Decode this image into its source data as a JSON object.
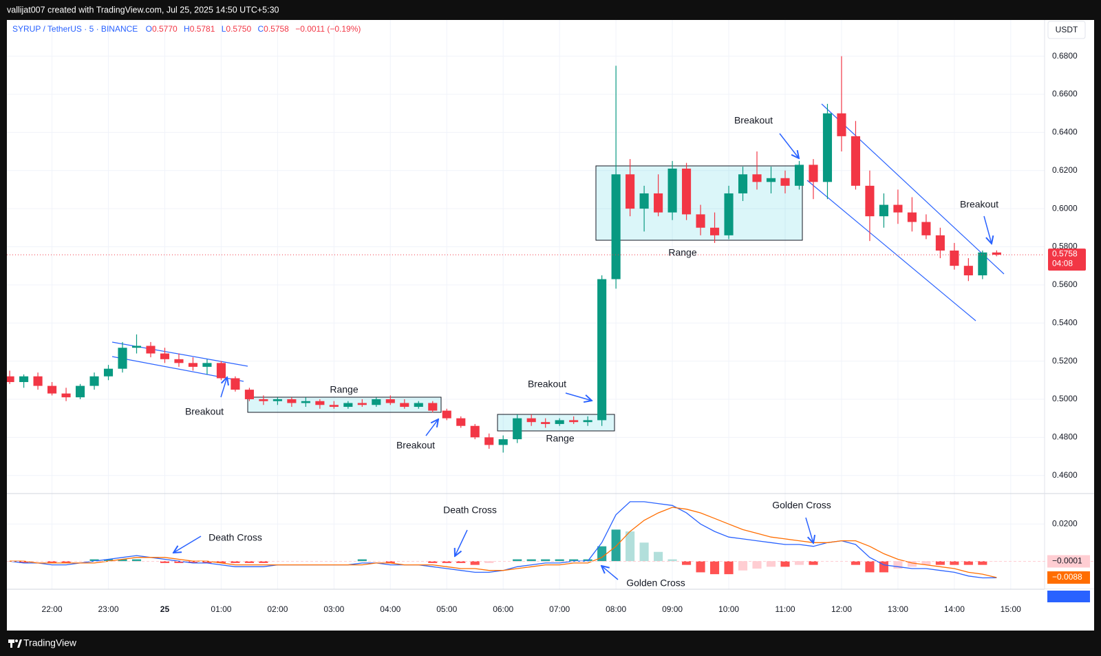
{
  "header": {
    "credit": "vallijat007 created with TradingView.com, Jul 25, 2025 14:50 UTC+5:30"
  },
  "footer": {
    "brand": "TradingView"
  },
  "chart_data": [
    {
      "type": "candlestick",
      "symbol": "SYRUP / TetherUS · 5 · BINANCE",
      "legend": [
        {
          "key": "O",
          "value": "0.5770"
        },
        {
          "key": "H",
          "value": "0.5781"
        },
        {
          "key": "L",
          "value": "0.5750"
        },
        {
          "key": "C",
          "value": "0.5758"
        }
      ],
      "change": "−0.0011 (−0.19%)",
      "currency": "USDT",
      "x": [
        -2.75,
        -2.5,
        -2.25,
        -2,
        -1.75,
        -1.5,
        -1.25,
        -1,
        -0.75,
        -0.5,
        -0.25,
        0,
        0.25,
        0.5,
        0.75,
        1,
        1.25,
        1.5,
        1.75,
        2,
        2.25,
        2.5,
        2.75,
        3,
        3.25,
        3.5,
        3.75,
        4,
        4.25,
        4.5,
        4.75,
        5,
        5.25,
        5.5,
        5.75,
        6,
        6.25,
        6.5,
        6.75,
        7,
        7.25,
        7.5,
        7.75,
        8,
        8.25,
        8.5,
        8.75,
        9,
        9.25,
        9.5,
        9.75,
        10,
        10.25,
        10.5,
        10.75,
        11,
        11.25,
        11.5,
        11.75,
        12,
        12.25,
        12.5,
        12.75,
        13,
        13.25,
        13.5,
        13.75,
        14,
        14.25,
        14.5,
        14.75
      ],
      "open": [
        0.512,
        0.509,
        0.512,
        0.507,
        0.503,
        0.501,
        0.507,
        0.512,
        0.516,
        0.527,
        0.528,
        0.524,
        0.521,
        0.519,
        0.517,
        0.519,
        0.511,
        0.505,
        0.5,
        0.499,
        0.5,
        0.498,
        0.499,
        0.497,
        0.496,
        0.498,
        0.497,
        0.5,
        0.498,
        0.496,
        0.498,
        0.494,
        0.49,
        0.486,
        0.48,
        0.476,
        0.479,
        0.49,
        0.488,
        0.487,
        0.489,
        0.488,
        0.489,
        0.563,
        0.618,
        0.6,
        0.608,
        0.598,
        0.621,
        0.597,
        0.59,
        0.586,
        0.608,
        0.618,
        0.614,
        0.616,
        0.612,
        0.623,
        0.614,
        0.65,
        0.638,
        0.612,
        0.596,
        0.602,
        0.598,
        0.593,
        0.586,
        0.578,
        0.57,
        0.565,
        0.577
      ],
      "high": [
        0.515,
        0.513,
        0.514,
        0.509,
        0.506,
        0.508,
        0.514,
        0.518,
        0.53,
        0.534,
        0.53,
        0.527,
        0.524,
        0.522,
        0.521,
        0.52,
        0.512,
        0.506,
        0.502,
        0.501,
        0.501,
        0.501,
        0.5,
        0.499,
        0.499,
        0.5,
        0.501,
        0.502,
        0.5,
        0.499,
        0.499,
        0.495,
        0.491,
        0.487,
        0.482,
        0.481,
        0.492,
        0.492,
        0.49,
        0.49,
        0.491,
        0.491,
        0.565,
        0.675,
        0.626,
        0.612,
        0.618,
        0.625,
        0.624,
        0.602,
        0.598,
        0.612,
        0.622,
        0.63,
        0.622,
        0.62,
        0.625,
        0.626,
        0.655,
        0.68,
        0.646,
        0.62,
        0.608,
        0.61,
        0.606,
        0.597,
        0.59,
        0.582,
        0.574,
        0.578,
        0.5781
      ],
      "low": [
        0.508,
        0.506,
        0.505,
        0.502,
        0.499,
        0.5,
        0.505,
        0.51,
        0.514,
        0.524,
        0.522,
        0.519,
        0.517,
        0.515,
        0.513,
        0.51,
        0.504,
        0.499,
        0.497,
        0.497,
        0.496,
        0.496,
        0.495,
        0.495,
        0.495,
        0.496,
        0.496,
        0.497,
        0.495,
        0.495,
        0.493,
        0.489,
        0.485,
        0.479,
        0.474,
        0.472,
        0.477,
        0.486,
        0.485,
        0.486,
        0.487,
        0.486,
        0.486,
        0.558,
        0.596,
        0.588,
        0.596,
        0.594,
        0.594,
        0.586,
        0.582,
        0.584,
        0.604,
        0.61,
        0.608,
        0.608,
        0.61,
        0.605,
        0.605,
        0.63,
        0.61,
        0.583,
        0.59,
        0.592,
        0.588,
        0.584,
        0.574,
        0.568,
        0.562,
        0.563,
        0.575
      ],
      "close": [
        0.509,
        0.512,
        0.507,
        0.503,
        0.501,
        0.507,
        0.512,
        0.516,
        0.527,
        0.528,
        0.524,
        0.521,
        0.519,
        0.517,
        0.519,
        0.511,
        0.505,
        0.5,
        0.499,
        0.5,
        0.498,
        0.499,
        0.497,
        0.496,
        0.498,
        0.497,
        0.5,
        0.498,
        0.496,
        0.498,
        0.494,
        0.49,
        0.486,
        0.48,
        0.476,
        0.479,
        0.49,
        0.488,
        0.487,
        0.489,
        0.488,
        0.489,
        0.563,
        0.618,
        0.6,
        0.608,
        0.598,
        0.621,
        0.597,
        0.59,
        0.586,
        0.608,
        0.618,
        0.614,
        0.616,
        0.612,
        0.623,
        0.614,
        0.65,
        0.638,
        0.612,
        0.596,
        0.602,
        0.598,
        0.593,
        0.586,
        0.578,
        0.57,
        0.565,
        0.577,
        0.5758
      ],
      "up_color": "#089981",
      "down_color": "#f23645",
      "xlim": [
        -2.8,
        15.6
      ],
      "xticks": [
        {
          "value": -2,
          "label": "22:00"
        },
        {
          "value": -1,
          "label": "23:00"
        },
        {
          "value": 0,
          "label": "25"
        },
        {
          "value": 1,
          "label": "01:00"
        },
        {
          "value": 2,
          "label": "02:00"
        },
        {
          "value": 3,
          "label": "03:00"
        },
        {
          "value": 4,
          "label": "04:00"
        },
        {
          "value": 5,
          "label": "05:00"
        },
        {
          "value": 6,
          "label": "06:00"
        },
        {
          "value": 7,
          "label": "07:00"
        },
        {
          "value": 8,
          "label": "08:00"
        },
        {
          "value": 9,
          "label": "09:00"
        },
        {
          "value": 10,
          "label": "10:00"
        },
        {
          "value": 11,
          "label": "11:00"
        },
        {
          "value": 12,
          "label": "12:00"
        },
        {
          "value": 13,
          "label": "13:00"
        },
        {
          "value": 14,
          "label": "14:00"
        },
        {
          "value": 15,
          "label": "15:00"
        }
      ],
      "ylim": [
        0.4505,
        0.699
      ],
      "yticks": [
        {
          "value": 0.46,
          "label": "0.4600"
        },
        {
          "value": 0.48,
          "label": "0.4800"
        },
        {
          "value": 0.5,
          "label": "0.5000"
        },
        {
          "value": 0.52,
          "label": "0.5200"
        },
        {
          "value": 0.54,
          "label": "0.5400"
        },
        {
          "value": 0.56,
          "label": "0.5600"
        },
        {
          "value": 0.58,
          "label": "0.5800"
        },
        {
          "value": 0.6,
          "label": "0.6000"
        },
        {
          "value": 0.62,
          "label": "0.6200"
        },
        {
          "value": 0.64,
          "label": "0.6400"
        },
        {
          "value": 0.66,
          "label": "0.6600"
        },
        {
          "value": 0.68,
          "label": "0.6800"
        }
      ],
      "grid": true,
      "last_price_label": "0.5758",
      "countdown": "04:08",
      "annotations": [
        "Range",
        "Range",
        "Range",
        "Breakout",
        "Breakout",
        "Breakout",
        "Breakout",
        "Breakout"
      ]
    },
    {
      "type": "macd",
      "macd": {
        "color": "#2962ff",
        "values": [
          0,
          -0.001,
          -0.001,
          -0.002,
          -0.002,
          -0.001,
          0,
          0.001,
          0.002,
          0.003,
          0.002,
          0.001,
          0,
          -0.001,
          -0.001,
          -0.002,
          -0.003,
          -0.003,
          -0.003,
          -0.002,
          -0.002,
          -0.002,
          -0.002,
          -0.002,
          -0.002,
          -0.001,
          -0.001,
          -0.002,
          -0.002,
          -0.002,
          -0.003,
          -0.004,
          -0.005,
          -0.006,
          -0.006,
          -0.005,
          -0.003,
          -0.002,
          -0.001,
          -0.001,
          0,
          0,
          0.01,
          0.025,
          0.032,
          0.032,
          0.031,
          0.03,
          0.026,
          0.02,
          0.016,
          0.013,
          0.012,
          0.011,
          0.01,
          0.009,
          0.009,
          0.008,
          0.01,
          0.011,
          0.009,
          0.002,
          -0.002,
          -0.003,
          -0.004,
          -0.004,
          -0.005,
          -0.006,
          -0.008,
          -0.009,
          -0.0089
        ]
      },
      "signal": {
        "color": "#ff6d00",
        "values": [
          0,
          0,
          -0.001,
          -0.001,
          -0.001,
          -0.001,
          -0.001,
          0,
          0.001,
          0.002,
          0.002,
          0.002,
          0.001,
          0,
          0,
          -0.001,
          -0.002,
          -0.002,
          -0.002,
          -0.002,
          -0.002,
          -0.002,
          -0.002,
          -0.002,
          -0.002,
          -0.002,
          -0.001,
          -0.001,
          -0.002,
          -0.002,
          -0.002,
          -0.003,
          -0.004,
          -0.004,
          -0.005,
          -0.005,
          -0.004,
          -0.003,
          -0.002,
          -0.002,
          -0.001,
          -0.001,
          0.002,
          0.008,
          0.016,
          0.022,
          0.026,
          0.029,
          0.028,
          0.026,
          0.023,
          0.02,
          0.017,
          0.015,
          0.013,
          0.012,
          0.011,
          0.01,
          0.01,
          0.011,
          0.011,
          0.008,
          0.004,
          0.001,
          -0.001,
          -0.002,
          -0.003,
          -0.004,
          -0.006,
          -0.007,
          -0.0088
        ]
      },
      "histogram": {
        "colors": [
          "#26a69a",
          "#b2dfdb",
          "#ff5252",
          "#ffcdd2"
        ],
        "values": [
          0,
          -0.001,
          0,
          -0.001,
          -0.001,
          0,
          0.001,
          0.001,
          0.001,
          0.001,
          0,
          -0.001,
          -0.001,
          -0.001,
          -0.001,
          -0.001,
          -0.001,
          -0.001,
          -0.001,
          0,
          0,
          0,
          0,
          0,
          0,
          0.001,
          0,
          -0.001,
          0,
          0,
          -0.001,
          -0.001,
          -0.001,
          -0.002,
          -0.001,
          0,
          0.001,
          0.001,
          0.001,
          0.001,
          0.001,
          0.001,
          0.008,
          0.017,
          0.016,
          0.01,
          0.005,
          0.001,
          -0.002,
          -0.006,
          -0.007,
          -0.007,
          -0.005,
          -0.004,
          -0.003,
          -0.003,
          -0.002,
          -0.002,
          0,
          0,
          -0.002,
          -0.006,
          -0.006,
          -0.004,
          -0.003,
          -0.002,
          -0.002,
          -0.002,
          -0.002,
          -0.002,
          -0.0001
        ]
      },
      "ylim": [
        -0.0151,
        0.0364
      ],
      "yticks": [
        {
          "value": 0.02,
          "label": "0.0200"
        }
      ],
      "value_labels": {
        "histogram": "−0.0001",
        "signal": "−0.0088"
      },
      "annotations": [
        "Death Cross",
        "Death Cross",
        "Golden Cross",
        "Golden Cross"
      ]
    }
  ]
}
